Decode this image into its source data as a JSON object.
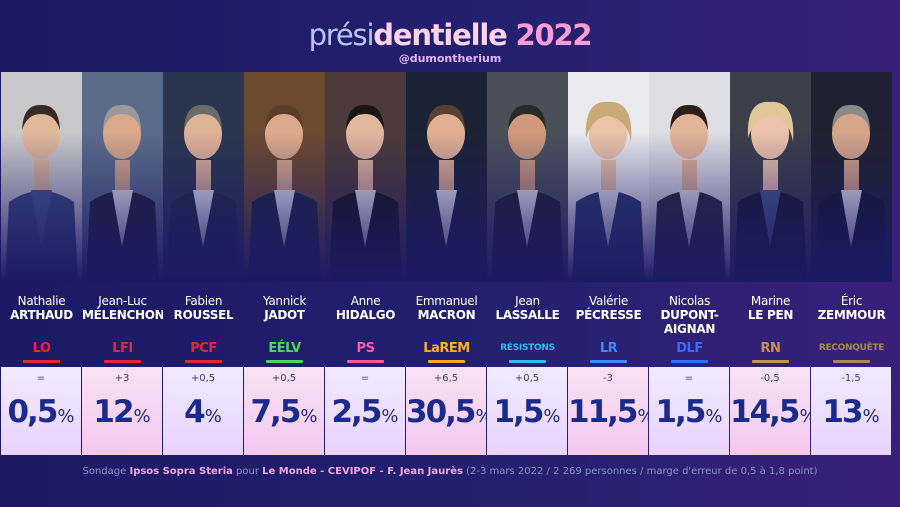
{
  "header": {
    "title_part1": "prési",
    "title_part2": "dentielle",
    "title_part3": " 2022",
    "handle": "@dumontherium"
  },
  "chart_data": {
    "type": "bar",
    "title": "présidentielle 2022",
    "unit": "%",
    "candidates": [
      {
        "first": "Nathalie",
        "last": "ARTHAUD",
        "party": "LO",
        "party_color": "#e8263a",
        "change": "=",
        "display": "0,5",
        "value": 0.5
      },
      {
        "first": "Jean-Luc",
        "last": "MÉLENCHON",
        "party": "LFI",
        "party_color": "#e8263a",
        "change": "+3",
        "display": "12",
        "value": 12
      },
      {
        "first": "Fabien",
        "last": "ROUSSEL",
        "party": "PCF",
        "party_color": "#e8263a",
        "change": "+0,5",
        "display": "4",
        "value": 4
      },
      {
        "first": "Yannick",
        "last": "JADOT",
        "party": "EÉLV",
        "party_color": "#4fd36b",
        "change": "+0,5",
        "display": "7,5",
        "value": 7.5
      },
      {
        "first": "Anne",
        "last": "HIDALGO",
        "party": "PS",
        "party_color": "#ff5aa8",
        "change": "=",
        "display": "2,5",
        "value": 2.5
      },
      {
        "first": "Emmanuel",
        "last": "MACRON",
        "party": "LaREM",
        "party_color": "#ffb020",
        "change": "+6,5",
        "display": "30,5",
        "value": 30.5
      },
      {
        "first": "Jean",
        "last": "LASSALLE",
        "party": "RÉSISTONS",
        "party_color": "#35b9f0",
        "change": "+0,5",
        "display": "1,5",
        "value": 1.5
      },
      {
        "first": "Valérie",
        "last": "PÉCRESSE",
        "party": "LR",
        "party_color": "#3a8cff",
        "change": "-3",
        "display": "11,5",
        "value": 11.5
      },
      {
        "first": "Nicolas",
        "last": "DUPONT-\nAIGNAN",
        "party": "DLF",
        "party_color": "#3a6bff",
        "change": "=",
        "display": "1,5",
        "value": 1.5
      },
      {
        "first": "Marine",
        "last": "LE PEN",
        "party": "RN",
        "party_color": "#c9924f",
        "change": "-0,5",
        "display": "14,5",
        "value": 14.5
      },
      {
        "first": "Éric",
        "last": "ZEMMOUR",
        "party": "RECONQUÊTE",
        "party_color": "#a88a4a",
        "change": "-1,5",
        "display": "13",
        "value": 13
      }
    ]
  },
  "footer": {
    "t1": "Sondage ",
    "t2": "Ipsos Sopra Steria",
    "t3": " pour ",
    "t4": "Le Monde - CEVIPOF - F. Jean Jaurès",
    "t5": "  (2-3 mars 2022 / 2 269 personnes / marge d'erreur de 0,5 à 1,8 point)"
  },
  "colors": {
    "accent": "#ff9bd6",
    "score_text": "#1b2b8c",
    "background": "#1c1a66"
  }
}
